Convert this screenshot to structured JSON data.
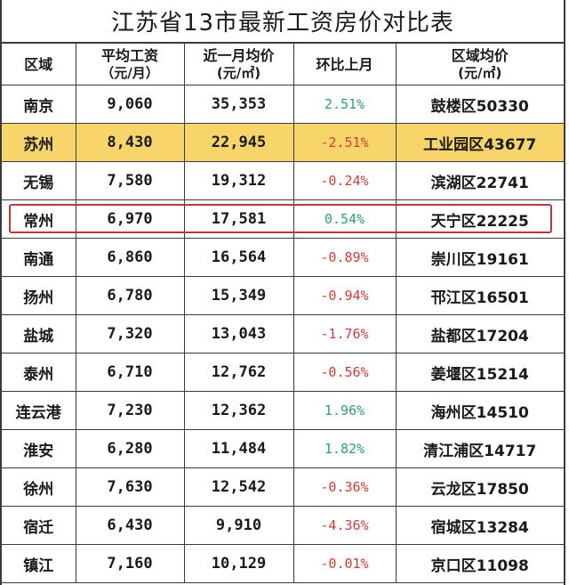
{
  "title": "江苏省13市最新工资房价对比表",
  "headers": [
    {
      "line1": "区域",
      "line2": ""
    },
    {
      "line1": "平均工资",
      "line2": "（元/月）"
    },
    {
      "line1": "近一月均价",
      "line2": "(元/㎡)"
    },
    {
      "line1": "环比上月",
      "line2": ""
    },
    {
      "line1": "区域均价",
      "line2": "(元/㎡)"
    }
  ],
  "colors": {
    "highlight_row": "#f7d56a",
    "positive": "#2e9e7a",
    "negative": "#d23a3a",
    "outline_box": "#b73a3a"
  },
  "rows": [
    {
      "city": "南京",
      "salary": "9,060",
      "price": "35,353",
      "mom": "2.51%",
      "district": "鼓楼区50330"
    },
    {
      "city": "苏州",
      "salary": "8,430",
      "price": "22,945",
      "mom": "-2.51%",
      "district": "工业园区43677"
    },
    {
      "city": "无锡",
      "salary": "7,580",
      "price": "19,312",
      "mom": "-0.24%",
      "district": "滨湖区22741"
    },
    {
      "city": "常州",
      "salary": "6,970",
      "price": "17,581",
      "mom": "0.54%",
      "district": "天宁区22225"
    },
    {
      "city": "南通",
      "salary": "6,860",
      "price": "16,564",
      "mom": "-0.89%",
      "district": "崇川区19161"
    },
    {
      "city": "扬州",
      "salary": "6,780",
      "price": "15,349",
      "mom": "-0.94%",
      "district": "邗江区16501"
    },
    {
      "city": "盐城",
      "salary": "7,320",
      "price": "13,043",
      "mom": "-1.76%",
      "district": "盐都区17204"
    },
    {
      "city": "泰州",
      "salary": "6,710",
      "price": "12,762",
      "mom": "-0.56%",
      "district": "姜堰区15214"
    },
    {
      "city": "连云港",
      "salary": "7,230",
      "price": "12,362",
      "mom": "1.96%",
      "district": "海州区14510"
    },
    {
      "city": "淮安",
      "salary": "6,280",
      "price": "11,484",
      "mom": "1.82%",
      "district": "清江浦区14717"
    },
    {
      "city": "徐州",
      "salary": "7,630",
      "price": "12,542",
      "mom": "-0.36%",
      "district": "云龙区17850"
    },
    {
      "city": "宿迁",
      "salary": "6,430",
      "price": "9,910",
      "mom": "-4.36%",
      "district": "宿城区13284"
    },
    {
      "city": "镇江",
      "salary": "7,160",
      "price": "10,129",
      "mom": "-0.01%",
      "district": "京口区11098"
    }
  ]
}
